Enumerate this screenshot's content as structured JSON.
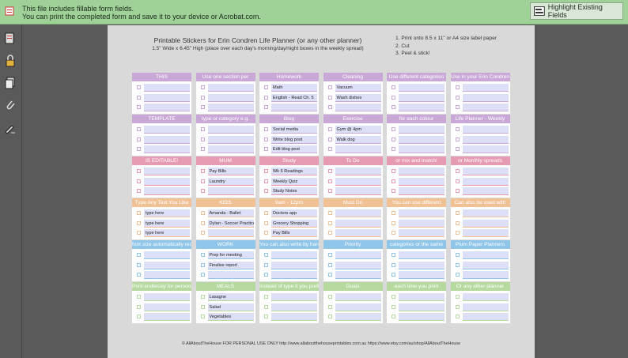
{
  "banner": {
    "line1": "This file includes fillable form fields.",
    "line2": "You can print the completed form and save it to your device or Acrobat.com.",
    "highlight_label": "Highlight Existing Fields"
  },
  "doc": {
    "title": "Printable Stickers for Erin Condren Life Planner (or any other planner)",
    "subtitle": "1.5\" Wide x 6.45\" High (place over each day's morning/day/night boxes in the weekly spread)",
    "instructions": [
      "1. Print onto 8.5 x 11\" or A4 size label paper",
      "2. Cut",
      "3. Peel & stick!"
    ],
    "footer": "© AllAboutTheHouse     FOR PERSONAL USE ONLY     http://www.allaboutthehouseprintables.com.au     https://www.etsy.com/au/shop/AllAboutTheHouse"
  },
  "colors": {
    "purple": "#c9a8d8",
    "purple_field": "#e9e0f2",
    "pink": "#e79bb3",
    "pink_field": "#f8e1e8",
    "orange": "#f1c196",
    "orange_field": "#fbe9d9",
    "blue": "#8fc5e8",
    "blue_field": "#e2f0fa",
    "green": "#b6d99f",
    "green_field": "#eaf4e1",
    "lavender_field": "#dcdff5"
  },
  "columns": [
    {
      "boxes": [
        {
          "header": "THIS",
          "color": "purple",
          "items": [
            "",
            "",
            ""
          ]
        },
        {
          "header": "TEMPLATE",
          "color": "purple",
          "items": [
            "",
            "",
            ""
          ]
        },
        {
          "header": "IS EDITABLE!",
          "color": "pink",
          "items": [
            "",
            "",
            ""
          ]
        },
        {
          "header": "Type Any Text You Like",
          "color": "orange",
          "items": [
            "type here",
            "type here",
            "type here"
          ]
        },
        {
          "header": "font size automatically reduces",
          "color": "blue",
          "items": [
            "",
            "",
            ""
          ]
        },
        {
          "header": "Print endlessly for personal use",
          "color": "green",
          "items": [
            "",
            "",
            ""
          ]
        }
      ]
    },
    {
      "boxes": [
        {
          "header": "Use one section per",
          "color": "purple",
          "items": [
            "",
            "",
            ""
          ]
        },
        {
          "header": "type or category e.g.",
          "color": "purple",
          "items": [
            "",
            "",
            ""
          ]
        },
        {
          "header": "MUM",
          "color": "pink",
          "items": [
            "Pay Bills",
            "Laundry",
            ""
          ]
        },
        {
          "header": "KIDS",
          "color": "orange",
          "items": [
            "Amanda - Ballet",
            "Dylan - Soccer Practice",
            ""
          ]
        },
        {
          "header": "WORK",
          "color": "blue",
          "items": [
            "Prep for meeting",
            "Finalise report",
            ""
          ]
        },
        {
          "header": "MEALS",
          "color": "green",
          "items": [
            "Lasagne",
            "Salad",
            "Vegetables"
          ]
        }
      ]
    },
    {
      "boxes": [
        {
          "header": "Homework",
          "color": "purple",
          "items": [
            "Math",
            "English - Read Ch. 5",
            ""
          ]
        },
        {
          "header": "Blog",
          "color": "purple",
          "items": [
            "Social media",
            "Write blog post",
            "Edit blog post"
          ]
        },
        {
          "header": "Study",
          "color": "pink",
          "items": [
            "Wk 6 Readings",
            "Weekly Quiz",
            "Study Notes"
          ]
        },
        {
          "header": "9am - 12pm",
          "color": "orange",
          "items": [
            "Doctors app",
            "Grocery Shopping",
            "Pay Bills"
          ]
        },
        {
          "header": "You can also write by hand",
          "color": "blue",
          "items": [
            "",
            "",
            ""
          ]
        },
        {
          "header": "Instead of type if you prefer",
          "color": "green",
          "items": [
            "",
            "",
            ""
          ]
        }
      ]
    },
    {
      "boxes": [
        {
          "header": "Cleaning",
          "color": "purple",
          "items": [
            "Vacuum",
            "Wash dishes",
            ""
          ]
        },
        {
          "header": "Exercise",
          "color": "purple",
          "items": [
            "Gym @ 4pm",
            "Walk dog",
            ""
          ]
        },
        {
          "header": "To Do",
          "color": "pink",
          "items": [
            "",
            "",
            ""
          ]
        },
        {
          "header": "Must Do",
          "color": "orange",
          "items": [
            "",
            "",
            ""
          ]
        },
        {
          "header": "Priority",
          "color": "blue",
          "items": [
            "",
            "",
            ""
          ]
        },
        {
          "header": "Goals",
          "color": "green",
          "items": [
            "",
            "",
            ""
          ]
        }
      ]
    },
    {
      "boxes": [
        {
          "header": "Use different categories",
          "color": "purple",
          "items": [
            "",
            "",
            ""
          ]
        },
        {
          "header": "for each colour",
          "color": "purple",
          "items": [
            "",
            "",
            ""
          ]
        },
        {
          "header": "or mix and match!",
          "color": "pink",
          "items": [
            "",
            "",
            ""
          ]
        },
        {
          "header": "You can use different",
          "color": "orange",
          "items": [
            "",
            "",
            ""
          ]
        },
        {
          "header": "categories or the same",
          "color": "blue",
          "items": [
            "",
            "",
            ""
          ]
        },
        {
          "header": "each time you print",
          "color": "green",
          "items": [
            "",
            "",
            ""
          ]
        }
      ]
    },
    {
      "boxes": [
        {
          "header": "Use in your Erin Condren",
          "color": "purple",
          "items": [
            "",
            "",
            ""
          ]
        },
        {
          "header": "Life Planner - Weekly",
          "color": "purple",
          "items": [
            "",
            "",
            ""
          ]
        },
        {
          "header": "or Monthly spreads",
          "color": "pink",
          "items": [
            "",
            "",
            ""
          ]
        },
        {
          "header": "Can also be used with",
          "color": "orange",
          "items": [
            "",
            "",
            ""
          ]
        },
        {
          "header": "Plum Paper Planners",
          "color": "blue",
          "items": [
            "",
            "",
            ""
          ]
        },
        {
          "header": "Or any other planner",
          "color": "green",
          "items": [
            "",
            "",
            ""
          ]
        }
      ]
    }
  ]
}
